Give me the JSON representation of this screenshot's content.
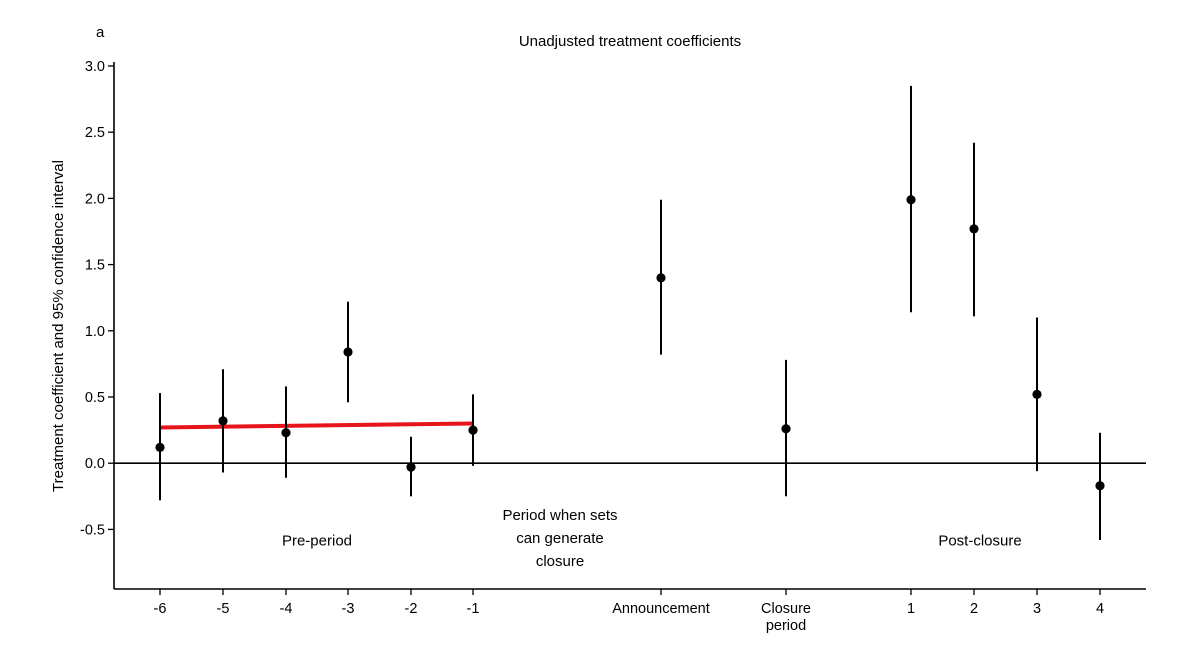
{
  "panel_label": "a",
  "chart_data": {
    "type": "scatter",
    "title": "Unadjusted treatment coefficients",
    "ylabel": "Treatment coefficient and 95% confidence interval",
    "xlabel": "",
    "ylim": [
      -0.95,
      3.03
    ],
    "yticks": [
      -0.5,
      0.0,
      0.5,
      1.0,
      1.5,
      2.0,
      2.5,
      3.0
    ],
    "ytick_labels": [
      "-0.5",
      "0.0",
      "0.5",
      "1.0",
      "1.5",
      "2.0",
      "2.5",
      "3.0"
    ],
    "categories": [
      "-6",
      "-5",
      "-4",
      "-3",
      "-2",
      "-1",
      "Announcement",
      "Closure period",
      "1",
      "2",
      "3",
      "4"
    ],
    "category_label_lines": [
      [
        "-6"
      ],
      [
        "-5"
      ],
      [
        "-4"
      ],
      [
        "-3"
      ],
      [
        "-2"
      ],
      [
        "-1"
      ],
      [
        "Announcement"
      ],
      [
        "Closure",
        "period"
      ],
      [
        "1"
      ],
      [
        "2"
      ],
      [
        "3"
      ],
      [
        "4"
      ]
    ],
    "values": [
      0.12,
      0.32,
      0.23,
      0.84,
      -0.03,
      0.25,
      1.4,
      0.26,
      1.99,
      1.77,
      0.52,
      -0.17
    ],
    "ci_lower": [
      -0.28,
      -0.07,
      -0.11,
      0.46,
      -0.25,
      -0.02,
      0.82,
      -0.25,
      1.14,
      1.11,
      -0.06,
      -0.58
    ],
    "ci_upper": [
      0.53,
      0.71,
      0.58,
      1.22,
      0.2,
      0.52,
      1.99,
      0.78,
      2.85,
      2.42,
      1.1,
      0.23
    ],
    "reference_line_y": 0.0,
    "trend_line": {
      "from_category": "-6",
      "to_category": "-1",
      "y_start": 0.27,
      "y_end": 0.3,
      "color": "#e8141c"
    },
    "annotations": [
      {
        "lines": [
          "Pre-period"
        ],
        "y": -0.62
      },
      {
        "lines": [
          "Period when sets",
          "can generate",
          "closure"
        ],
        "y": -0.43
      },
      {
        "lines": [
          "Post-closure"
        ],
        "y": -0.62
      }
    ],
    "grid": false
  }
}
